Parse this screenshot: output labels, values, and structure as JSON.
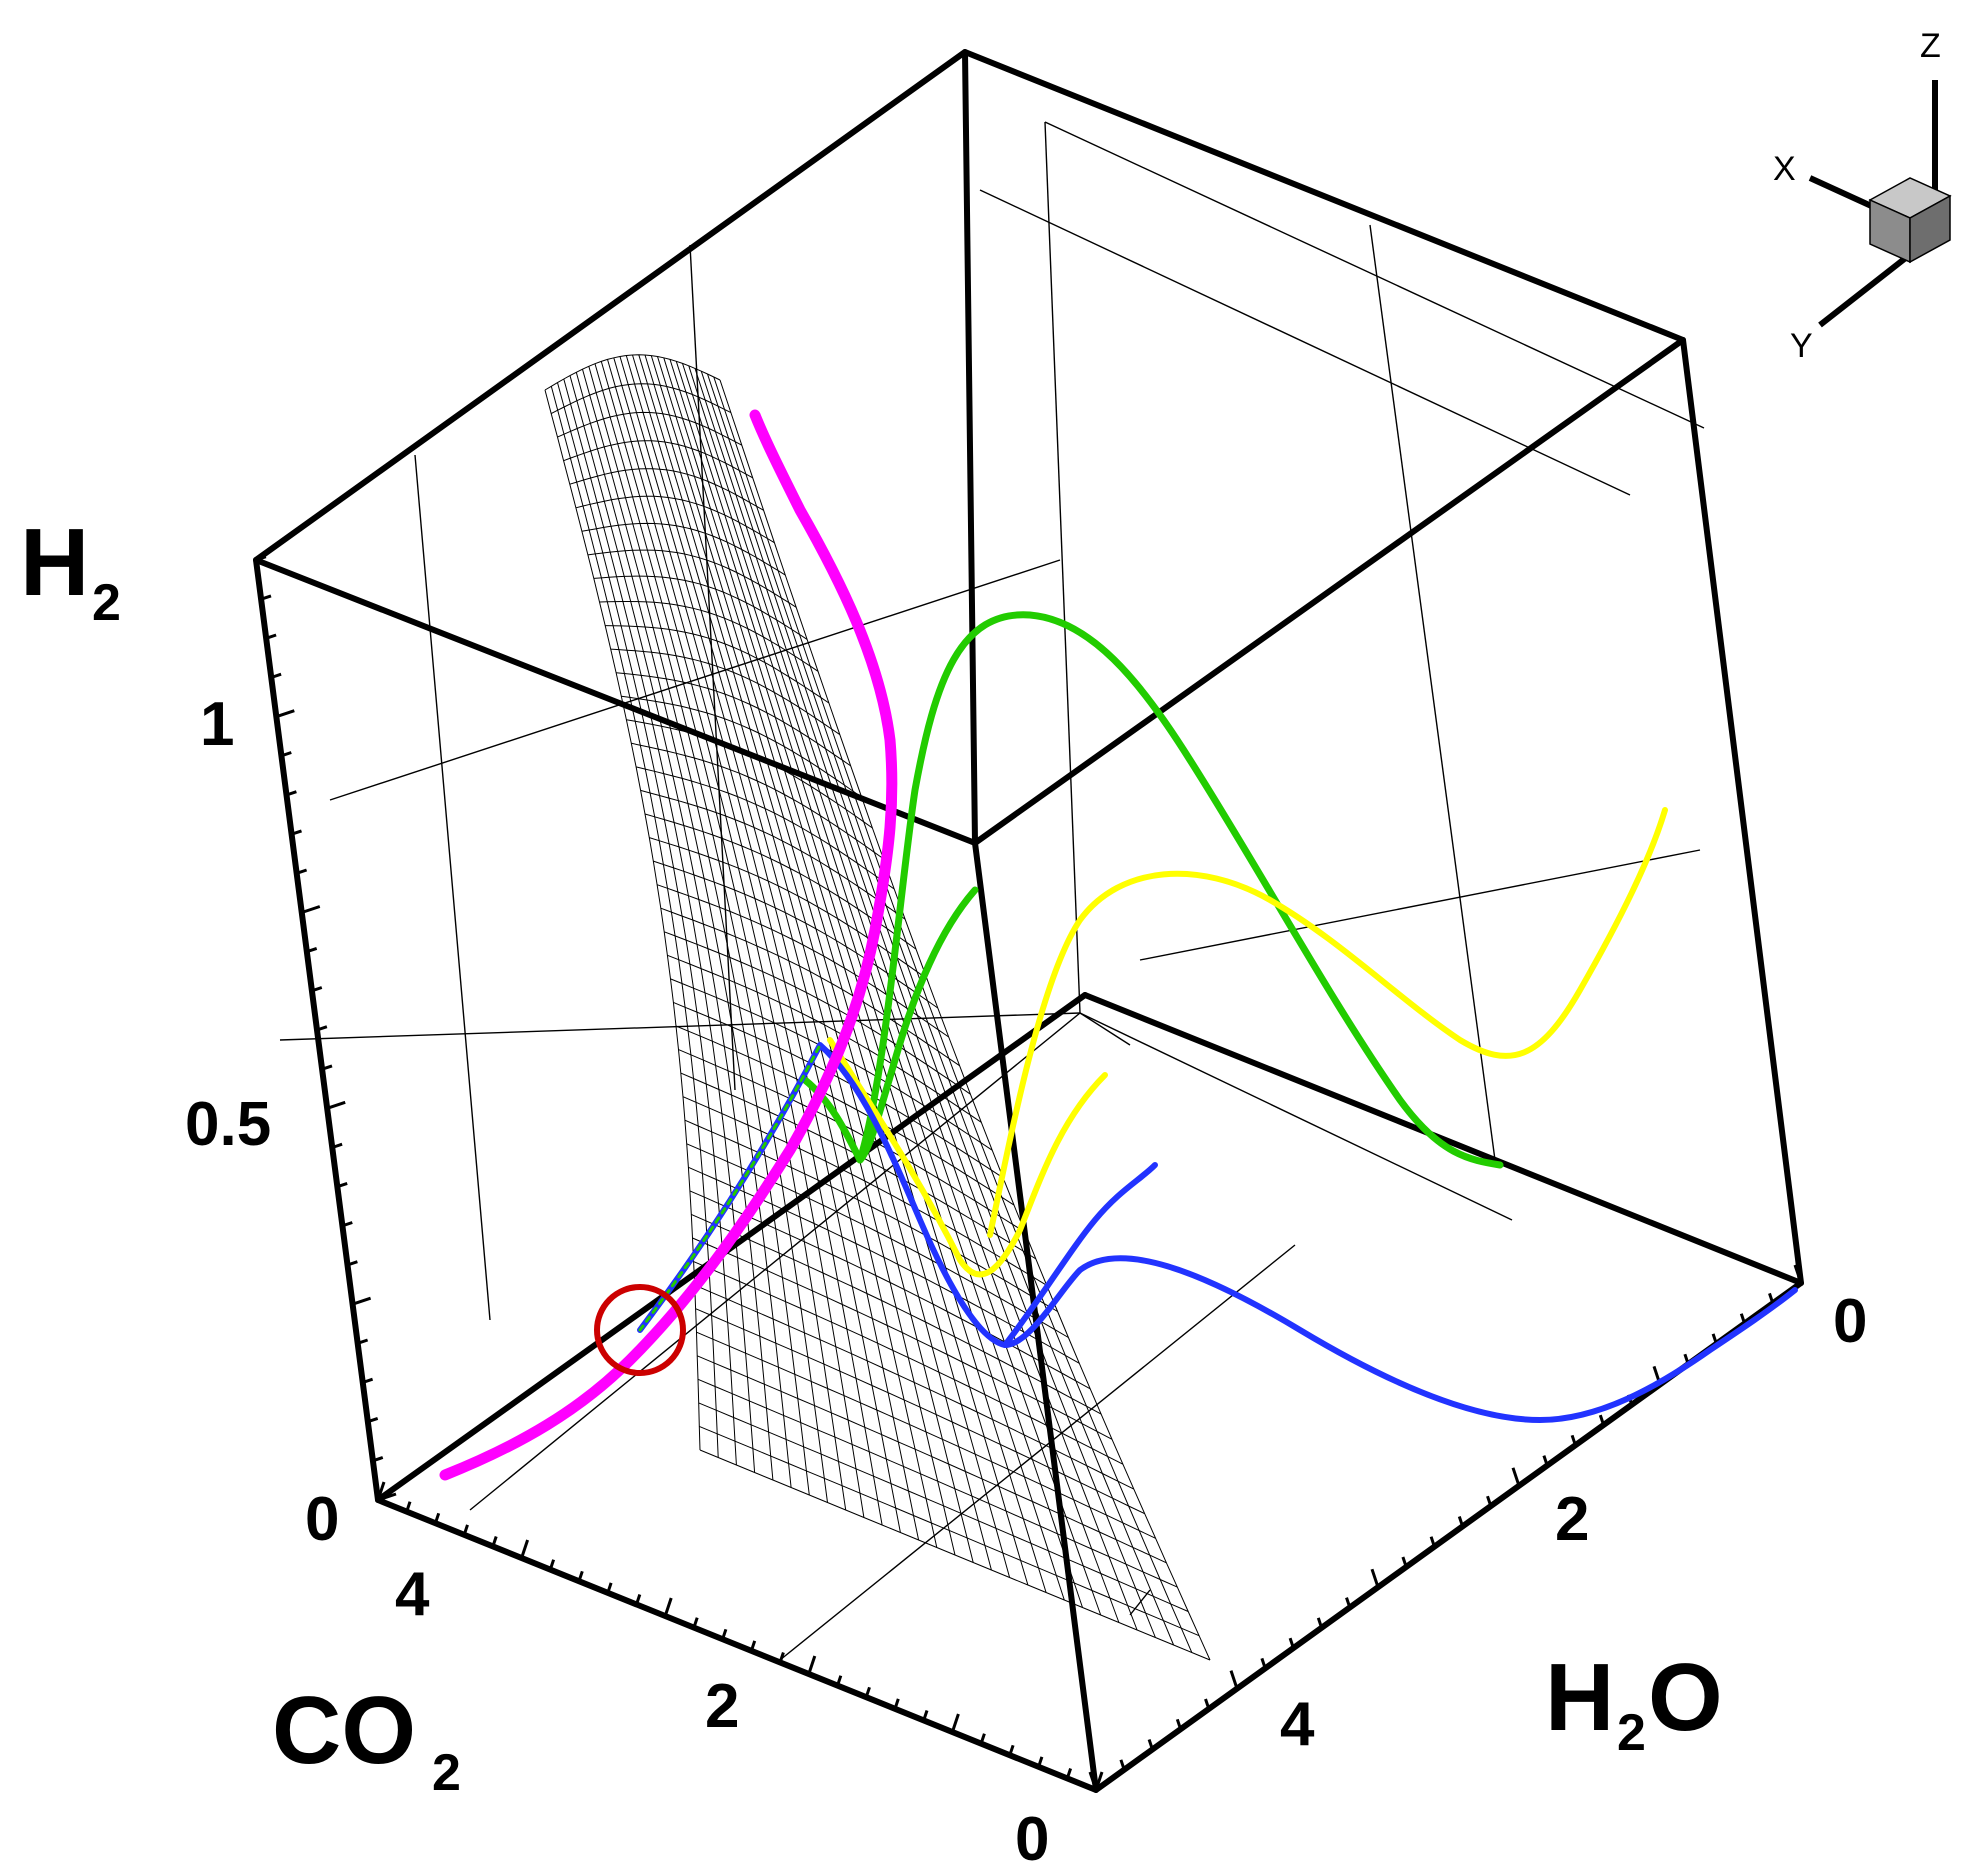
{
  "chart_data": {
    "type": "line",
    "view": "3d",
    "axes": {
      "x": {
        "title": "CO",
        "subscript": "2",
        "ticks": [
          "4",
          "2",
          "0"
        ],
        "range": [
          0,
          5
        ]
      },
      "y": {
        "title": "H",
        "subscript": "2",
        "post": "O",
        "ticks": [
          "0",
          "2",
          "4"
        ],
        "range": [
          0,
          5
        ]
      },
      "z": {
        "title": "H",
        "subscript": "2",
        "ticks": [
          "0",
          "0.5",
          "1"
        ],
        "range": [
          0,
          1.2
        ]
      }
    },
    "triad": {
      "x": "X",
      "y": "Y",
      "z": "Z"
    },
    "series": [
      {
        "color": "#ff00ff",
        "role": "curve-on-surface"
      },
      {
        "color": "#22cc00",
        "role": "projection"
      },
      {
        "color": "#ffff00",
        "role": "projection"
      },
      {
        "color": "#2233ff",
        "role": "projection"
      }
    ],
    "marker": {
      "shape": "circle",
      "color": "#cc0000"
    },
    "surface": {
      "style": "wireframe",
      "color": "#000000"
    },
    "grid": true
  }
}
